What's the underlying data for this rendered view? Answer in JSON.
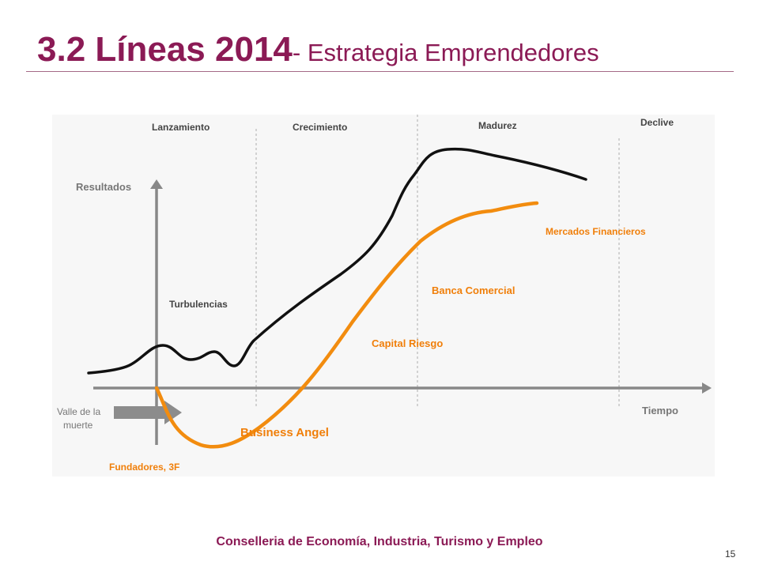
{
  "slide": {
    "title_main": "3.2 Líneas 2014",
    "title_sub": "- Estrategia Emprendedores",
    "footer": "Conselleria de Economía, Industria, Turismo y Empleo",
    "page_number": "15"
  },
  "diagram": {
    "phases": [
      "Lanzamiento",
      "Crecimiento",
      "Madurez",
      "Declive"
    ],
    "y_axis_label": "Resultados",
    "x_axis_label": "Tiempo",
    "valley_label_line1": "Valle de la",
    "valley_label_line2": "muerte",
    "turbulence_label": "Turbulencias",
    "funding_stages": [
      "Fundadores, 3F",
      "Business Angel",
      "Capital Riesgo",
      "Banca Comercial",
      "Mercados Financieros"
    ],
    "colors": {
      "results_curve": "#111111",
      "funding_curve": "#f28c0f",
      "axis": "#888888",
      "divider": "#bbbbbb",
      "label": "#444444",
      "funding_label": "#f07f0a"
    }
  }
}
